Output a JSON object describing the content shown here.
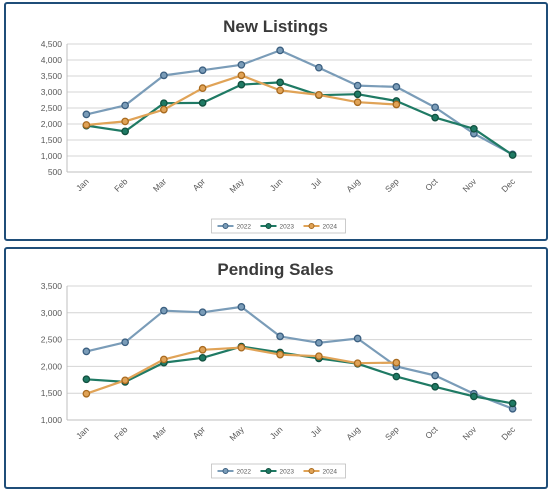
{
  "chart_data": [
    {
      "type": "line",
      "title": "New Listings",
      "categories": [
        "Jan",
        "Feb",
        "Mar",
        "Apr",
        "May",
        "Jun",
        "Jul",
        "Aug",
        "Sep",
        "Oct",
        "Nov",
        "Dec"
      ],
      "ylim": [
        500,
        4500
      ],
      "yticks": [
        "500",
        "1,000",
        "1,500",
        "2,000",
        "2,500",
        "3,000",
        "3,500",
        "4,000",
        "4,500"
      ],
      "ytick_values": [
        500,
        1000,
        1500,
        2000,
        2500,
        3000,
        3500,
        4000,
        4500
      ],
      "grid": true,
      "legend_position": "bottom",
      "series": [
        {
          "name": "2022",
          "color": "#7a9cb8",
          "marker": "#3b5f80",
          "values": [
            2300,
            2580,
            3520,
            3680,
            3850,
            4300,
            3760,
            3200,
            3160,
            2520,
            1700,
            1050
          ]
        },
        {
          "name": "2023",
          "color": "#1f7a64",
          "marker": "#12503f",
          "values": [
            1950,
            1770,
            2650,
            2660,
            3230,
            3300,
            2900,
            2930,
            2720,
            2200,
            1850,
            1030
          ],
          "x_end": 11
        },
        {
          "name": "2024",
          "color": "#e0a357",
          "marker": "#a86a1f",
          "values": [
            1970,
            2080,
            2450,
            3120,
            3520,
            3050,
            2910,
            2680,
            2610,
            null,
            null,
            null
          ]
        }
      ]
    },
    {
      "type": "line",
      "title": "Pending Sales",
      "categories": [
        "Jan",
        "Feb",
        "Mar",
        "Apr",
        "May",
        "Jun",
        "Jul",
        "Aug",
        "Sep",
        "Oct",
        "Nov",
        "Dec"
      ],
      "ylim": [
        1000,
        3500
      ],
      "yticks": [
        "1,000",
        "1,500",
        "2,000",
        "2,500",
        "3,000",
        "3,500"
      ],
      "ytick_values": [
        1000,
        1500,
        2000,
        2500,
        3000,
        3500
      ],
      "grid": true,
      "legend_position": "bottom",
      "series": [
        {
          "name": "2022",
          "color": "#7a9cb8",
          "marker": "#3b5f80",
          "values": [
            2280,
            2450,
            3040,
            3010,
            3110,
            2560,
            2440,
            2520,
            2000,
            1830,
            1490,
            1210
          ]
        },
        {
          "name": "2023",
          "color": "#1f7a64",
          "marker": "#12503f",
          "values": [
            1760,
            1710,
            2070,
            2160,
            2370,
            2260,
            2150,
            2050,
            1810,
            1620,
            1440,
            1310
          ]
        },
        {
          "name": "2024",
          "color": "#e0a357",
          "marker": "#a86a1f",
          "values": [
            1490,
            1740,
            2130,
            2310,
            2350,
            2220,
            2190,
            2060,
            2070,
            null,
            null,
            null
          ]
        }
      ]
    }
  ]
}
